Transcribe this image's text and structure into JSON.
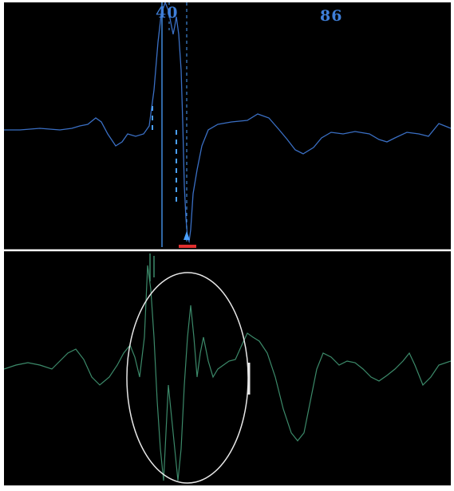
{
  "top_panel": {
    "readout_left": "40",
    "readout_right": "86",
    "trace_color": "#3a6fc4",
    "cursor_color": "#4aa0ff",
    "marker_color": "#e03030"
  },
  "bottom_panel": {
    "trace_color": "#3c8a6a",
    "highlight_ellipse_color": "#e8e8e8"
  },
  "divider_color": "#ffffff"
}
